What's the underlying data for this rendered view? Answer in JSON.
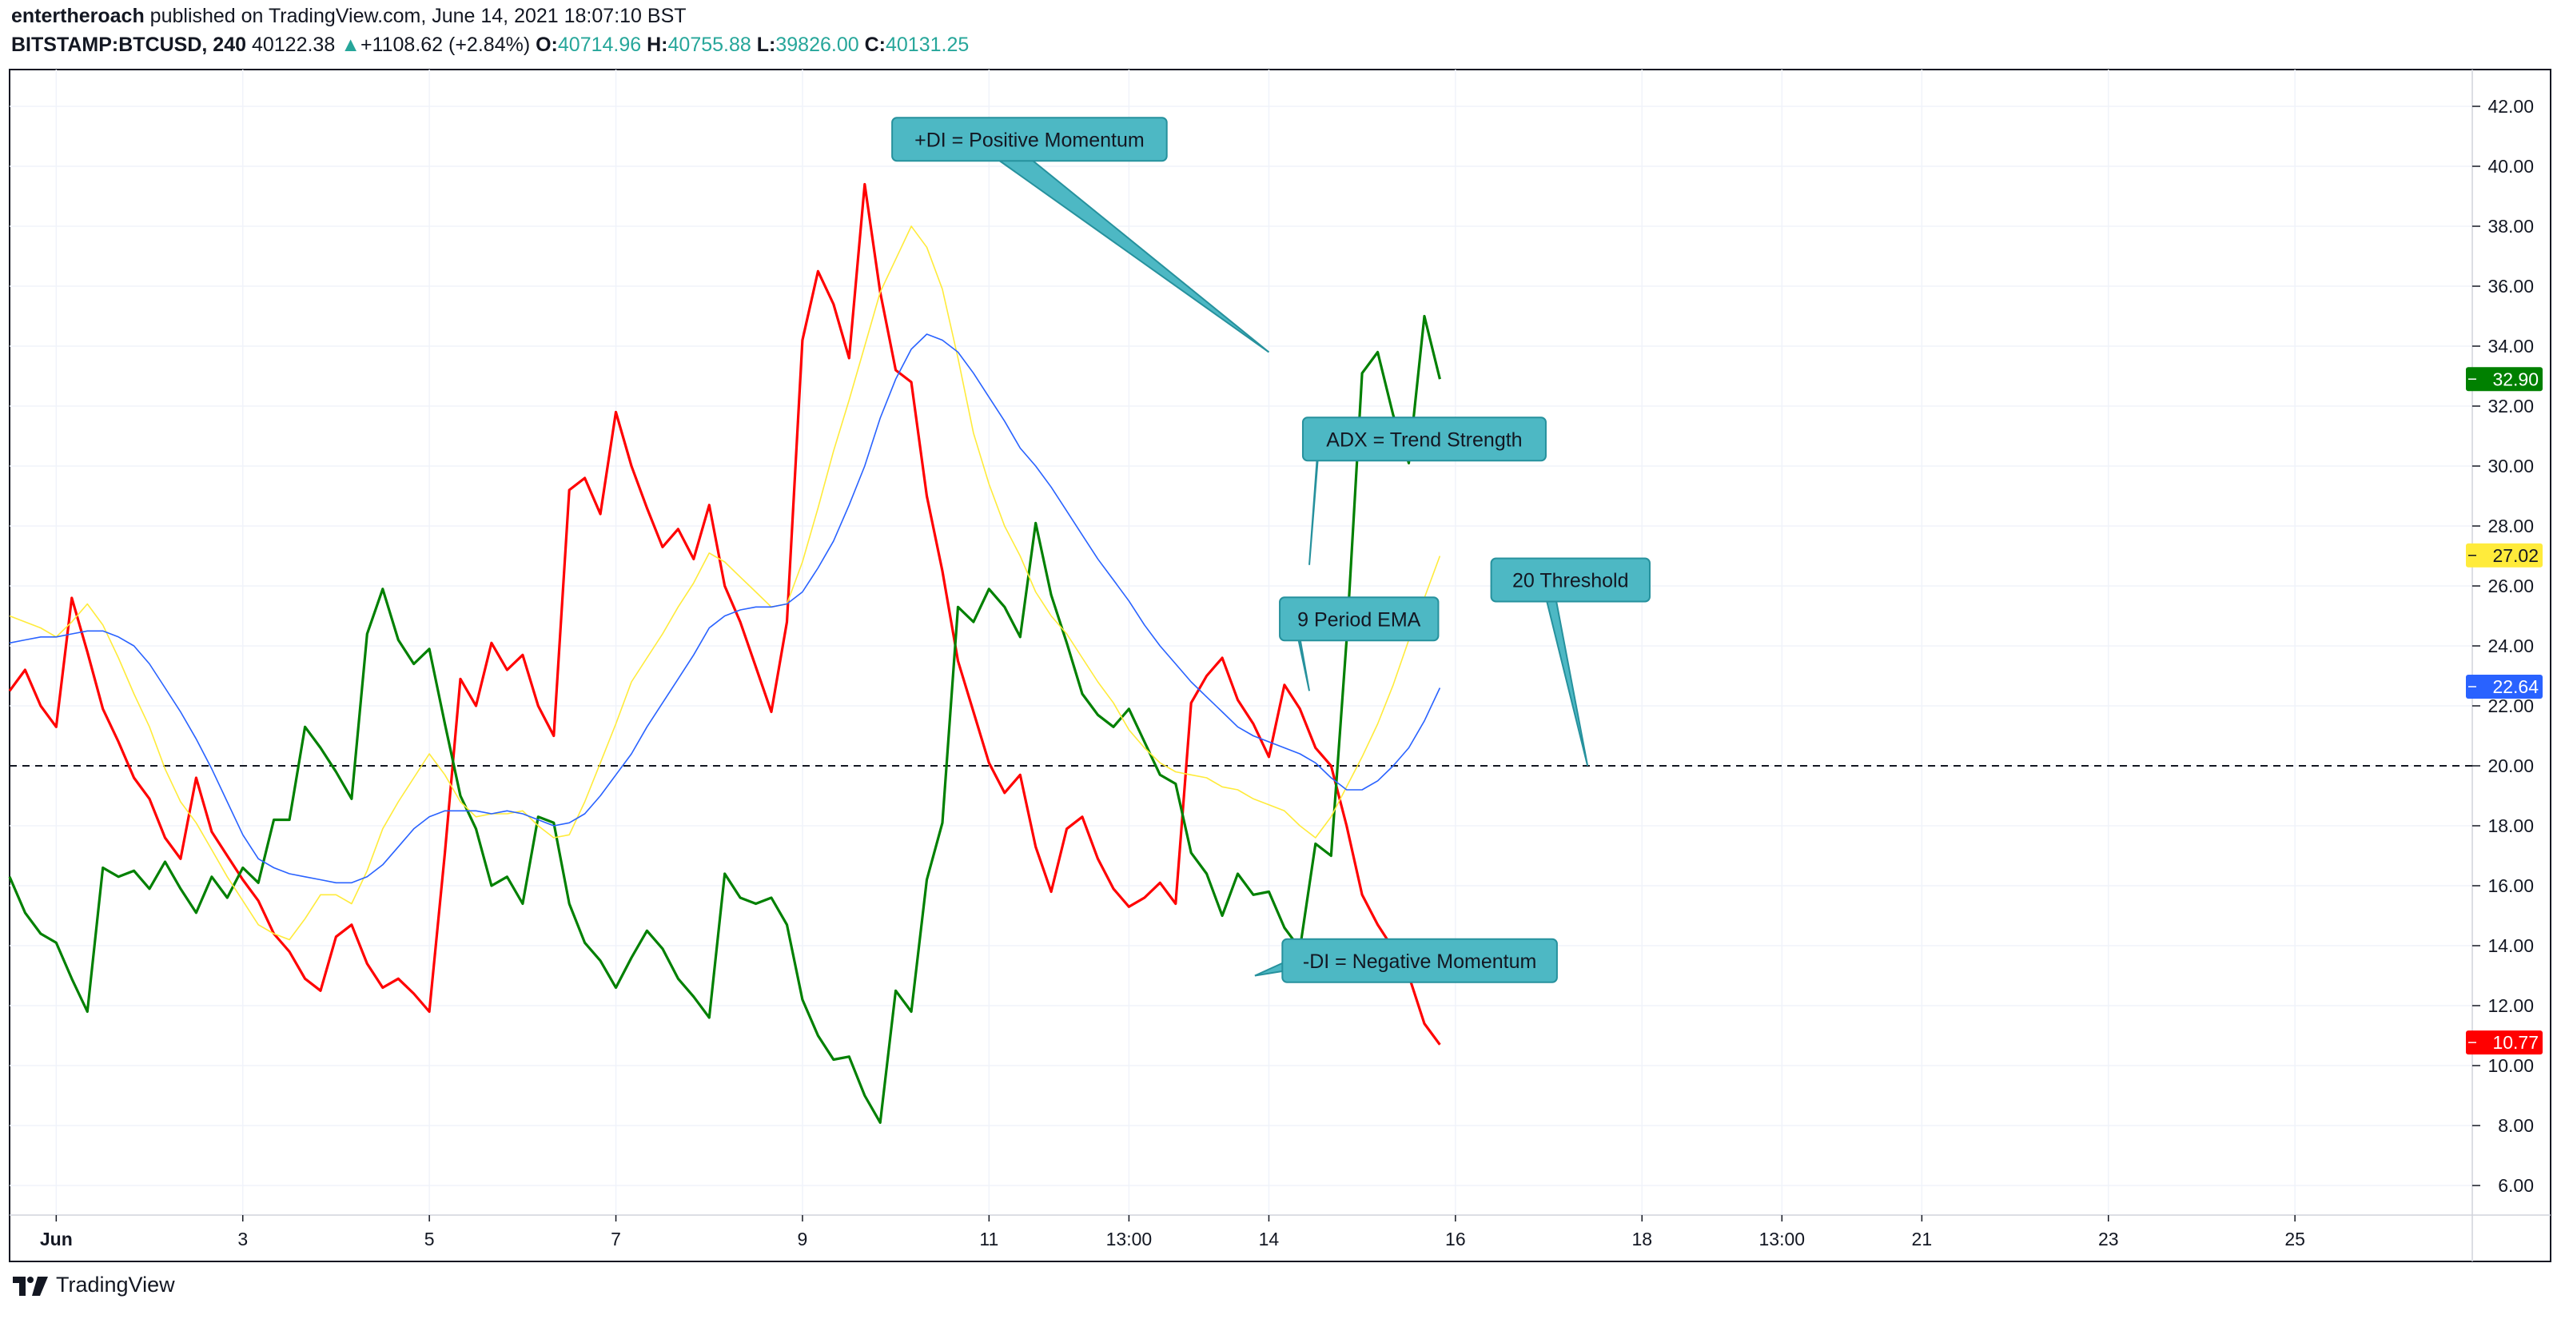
{
  "header": {
    "author": "entertheroach",
    "published_text": "published on TradingView.com, June 14, 2021 18:07:10 BST",
    "symbol": "BITSTAMP:BTCUSD, 240",
    "last_price": "40122.38",
    "change_arrow": "▲",
    "change": "+1108.62 (+2.84%)",
    "open_label": "O:",
    "open": "40714.96",
    "high_label": "H:",
    "high": "40755.88",
    "low_label": "L:",
    "low": "39826.00",
    "close_label": "C:",
    "close": "40131.25"
  },
  "footer": {
    "brand": "TradingView"
  },
  "chart_data": {
    "type": "line",
    "title": "",
    "xlabel": "",
    "ylabel": "",
    "ylim": [
      5,
      43
    ],
    "x_ticks": [
      {
        "label": "Jun",
        "x": 3.0
      },
      {
        "label": "3",
        "x": 15.0
      },
      {
        "label": "5",
        "x": 27.0
      },
      {
        "label": "7",
        "x": 39.0
      },
      {
        "label": "9",
        "x": 51.0
      },
      {
        "label": "11",
        "x": 63.0
      },
      {
        "label": "13:00",
        "x": 72.0
      },
      {
        "label": "14",
        "x": 81.0
      },
      {
        "label": "16",
        "x": 93.0
      },
      {
        "label": "18",
        "x": 105.0
      },
      {
        "label": "13:00",
        "x": 114.0
      },
      {
        "label": "21",
        "x": 123.0
      },
      {
        "label": "23",
        "x": 135.0
      },
      {
        "label": "25",
        "x": 147.0
      }
    ],
    "y_ticks": [
      "6.00",
      "8.00",
      "10.00",
      "12.00",
      "14.00",
      "16.00",
      "18.00",
      "20.00",
      "22.00",
      "24.00",
      "26.00",
      "28.00",
      "30.00",
      "32.00",
      "34.00",
      "36.00",
      "38.00",
      "40.00",
      "42.00"
    ],
    "grid": true,
    "threshold": 20,
    "series": [
      {
        "color": "#ff0000",
        "width": 3.2,
        "values": [
          22.5,
          23.2,
          22.0,
          21.3,
          25.6,
          23.8,
          21.9,
          20.8,
          19.6,
          18.9,
          17.6,
          16.9,
          19.6,
          17.8,
          17.0,
          16.2,
          15.5,
          14.4,
          13.8,
          12.9,
          12.5,
          14.3,
          14.7,
          13.4,
          12.6,
          12.9,
          12.4,
          11.8,
          17.1,
          22.9,
          22.0,
          24.1,
          23.2,
          23.7,
          22.0,
          21.0,
          29.2,
          29.6,
          28.4,
          31.8,
          30.0,
          28.6,
          27.3,
          27.9,
          26.9,
          28.7,
          26.0,
          24.8,
          23.3,
          21.8,
          24.8,
          34.2,
          36.5,
          35.4,
          33.6,
          39.4,
          35.8,
          33.2,
          32.8,
          29.0,
          26.5,
          23.5,
          21.8,
          20.1,
          19.1,
          19.7,
          17.3,
          15.8,
          17.9,
          18.3,
          16.9,
          15.9,
          15.3,
          15.6,
          16.1,
          15.4,
          22.1,
          23.0,
          23.6,
          22.2,
          21.4,
          20.3,
          22.7,
          21.9,
          20.6,
          20.0,
          18.0,
          15.7,
          14.7,
          13.9,
          13.0,
          11.4,
          10.7
        ]
      },
      {
        "color": "#008000",
        "width": 3.2,
        "values": [
          16.3,
          15.1,
          14.4,
          14.1,
          12.9,
          11.8,
          16.6,
          16.3,
          16.5,
          15.9,
          16.8,
          15.9,
          15.1,
          16.3,
          15.6,
          16.6,
          16.1,
          18.2,
          18.2,
          21.3,
          20.6,
          19.8,
          18.9,
          24.4,
          25.9,
          24.2,
          23.4,
          23.9,
          21.4,
          19.0,
          17.9,
          16.0,
          16.3,
          15.4,
          18.3,
          18.1,
          15.4,
          14.1,
          13.5,
          12.6,
          13.6,
          14.5,
          13.9,
          12.9,
          12.3,
          11.6,
          16.4,
          15.6,
          15.4,
          15.6,
          14.7,
          12.2,
          11.0,
          10.2,
          10.3,
          9.0,
          8.1,
          12.5,
          11.8,
          16.2,
          18.1,
          25.3,
          24.8,
          25.9,
          25.3,
          24.3,
          28.1,
          25.7,
          24.1,
          22.4,
          21.7,
          21.3,
          21.9,
          20.8,
          19.7,
          19.4,
          17.1,
          16.4,
          15.0,
          16.4,
          15.7,
          15.8,
          14.6,
          13.9,
          17.4,
          17.0,
          24.2,
          33.1,
          33.8,
          31.7,
          30.1,
          35.0,
          32.9
        ]
      },
      {
        "color": "#ffeb3b",
        "width": 1.6,
        "values": [
          25.0,
          24.8,
          24.6,
          24.3,
          24.8,
          25.4,
          24.7,
          23.6,
          22.4,
          21.3,
          19.9,
          18.8,
          18.1,
          17.2,
          16.3,
          15.5,
          14.7,
          14.4,
          14.2,
          14.9,
          15.7,
          15.7,
          15.4,
          16.5,
          17.9,
          18.8,
          19.6,
          20.4,
          19.7,
          18.8,
          18.3,
          18.4,
          18.4,
          18.5,
          18.0,
          17.6,
          17.7,
          18.8,
          20.1,
          21.4,
          22.8,
          23.6,
          24.4,
          25.3,
          26.1,
          27.1,
          26.8,
          26.3,
          25.8,
          25.3,
          25.4,
          26.8,
          28.6,
          30.5,
          32.2,
          34.0,
          35.8,
          36.9,
          38.0,
          37.3,
          35.9,
          33.6,
          31.1,
          29.4,
          28.0,
          27.0,
          25.8,
          25.0,
          24.4,
          23.6,
          22.8,
          22.1,
          21.2,
          20.6,
          20.1,
          19.8,
          19.7,
          19.6,
          19.3,
          19.2,
          18.9,
          18.7,
          18.5,
          18.0,
          17.6,
          18.3,
          19.3,
          20.3,
          21.4,
          22.7,
          24.2,
          25.6,
          27.0
        ]
      },
      {
        "color": "#2962ff",
        "width": 1.6,
        "values": [
          24.1,
          24.2,
          24.3,
          24.3,
          24.4,
          24.5,
          24.5,
          24.3,
          24.0,
          23.4,
          22.6,
          21.8,
          20.9,
          19.9,
          18.8,
          17.7,
          16.9,
          16.6,
          16.4,
          16.3,
          16.2,
          16.1,
          16.1,
          16.3,
          16.7,
          17.3,
          17.9,
          18.3,
          18.5,
          18.5,
          18.5,
          18.4,
          18.5,
          18.4,
          18.2,
          18.0,
          18.1,
          18.4,
          19.0,
          19.7,
          20.4,
          21.3,
          22.1,
          22.9,
          23.7,
          24.6,
          25.0,
          25.2,
          25.3,
          25.3,
          25.4,
          25.8,
          26.6,
          27.5,
          28.7,
          30.0,
          31.6,
          32.9,
          33.9,
          34.4,
          34.2,
          33.8,
          33.1,
          32.3,
          31.5,
          30.6,
          30.0,
          29.3,
          28.5,
          27.7,
          26.9,
          26.2,
          25.5,
          24.7,
          24.0,
          23.4,
          22.8,
          22.3,
          21.8,
          21.3,
          21.0,
          20.8,
          20.6,
          20.4,
          20.1,
          19.6,
          19.2,
          19.2,
          19.5,
          20.0,
          20.6,
          21.5,
          22.6
        ]
      }
    ],
    "last_value_labels": [
      {
        "value": 32.9,
        "text": "32.90",
        "color": "#008000",
        "text_color": "#ffffff"
      },
      {
        "value": 27.02,
        "text": "27.02",
        "color": "#ffeb3b",
        "text_color": "#131722"
      },
      {
        "value": 22.64,
        "text": "22.64",
        "color": "#2962ff",
        "text_color": "#ffffff"
      },
      {
        "value": 10.77,
        "text": "10.77",
        "color": "#ff0000",
        "text_color": "#ffffff"
      }
    ],
    "annotations": [
      {
        "text": "+DI = Positive Momentum",
        "x_data": 65.6,
        "y_data": 40.9,
        "tip_x": 81.0,
        "tip_y": 33.8,
        "anchor": "bottom"
      },
      {
        "text": "ADX = Trend Strength",
        "x_data": 91.0,
        "y_data": 30.9,
        "tip_x": 83.6,
        "tip_y": 26.7,
        "anchor": "left"
      },
      {
        "text": "9 Period EMA",
        "x_data": 86.8,
        "y_data": 24.9,
        "tip_x": 83.6,
        "tip_y": 22.5,
        "anchor": "left"
      },
      {
        "text": "20 Threshold",
        "x_data": 100.4,
        "y_data": 26.2,
        "tip_x": 101.5,
        "tip_y": 20.0,
        "anchor": "bottom"
      },
      {
        "text": "-DI = Negative Momentum",
        "x_data": 90.7,
        "y_data": 13.5,
        "tip_x": 80.1,
        "tip_y": 13.0,
        "anchor": "left"
      }
    ],
    "colors": {
      "grid": "#f0f3fa",
      "threshold": "#131722",
      "annotation_fill": "#4db8c4",
      "annotation_stroke": "#26919d"
    }
  }
}
